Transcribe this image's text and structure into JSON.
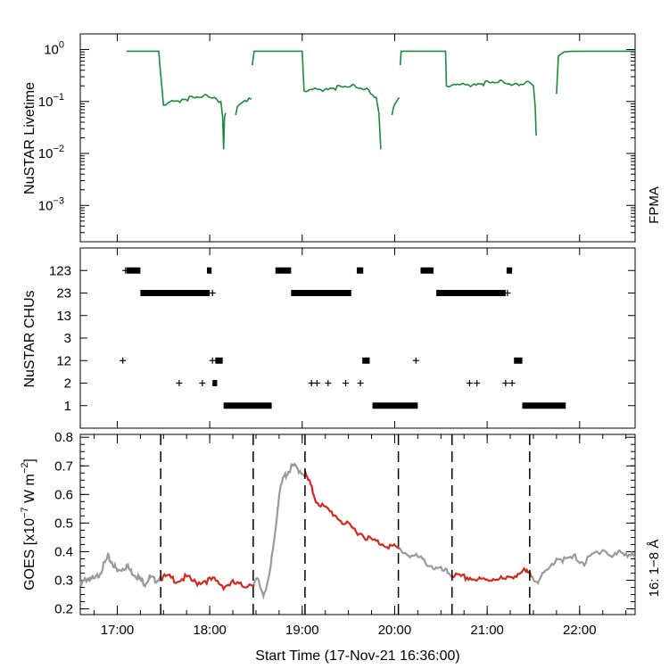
{
  "figure": {
    "xlabel": "Start Time (17-Nov-21 16:36:00)"
  },
  "colors": {
    "livetime": "#1b8a3a",
    "goes_gray": "#9a9a9a",
    "goes_red": "#d42a1e",
    "axis": "#000000"
  },
  "chart_data": [
    {
      "type": "line",
      "panel": "livetime",
      "ylabel": "NuSTAR Livetime",
      "yscale": "log",
      "ylim": [
        0.0002,
        2
      ],
      "xlim": [
        16.6,
        22.6
      ],
      "ytick_base": [
        "10",
        "10",
        "10",
        "10"
      ],
      "ytick_exp": [
        "0",
        "−1",
        "−2",
        "−3"
      ],
      "ytick_values": [
        1,
        0.1,
        0.01,
        0.001
      ],
      "legend": "FPMA",
      "segments": [
        {
          "x": [
            17.1,
            17.45,
            17.46,
            17.5,
            17.55,
            17.7,
            17.9,
            18.05,
            18.12,
            18.14,
            18.15,
            18.16,
            18.17
          ],
          "y": [
            0.93,
            0.93,
            0.5,
            0.085,
            0.095,
            0.11,
            0.12,
            0.12,
            0.1,
            0.05,
            0.012,
            0.05,
            0.06
          ]
        },
        {
          "x": [
            18.28,
            18.3,
            18.4,
            18.45
          ],
          "y": [
            0.055,
            0.08,
            0.1,
            0.11
          ]
        },
        {
          "x": [
            18.46,
            18.48,
            19.0,
            19.02,
            19.1,
            19.3,
            19.5,
            19.7,
            19.8,
            19.83,
            19.85
          ],
          "y": [
            0.5,
            0.93,
            0.93,
            0.16,
            0.17,
            0.18,
            0.19,
            0.18,
            0.12,
            0.06,
            0.012
          ]
        },
        {
          "x": [
            19.97,
            19.99,
            20.02,
            20.05
          ],
          "y": [
            0.055,
            0.08,
            0.1,
            0.12
          ]
        },
        {
          "x": [
            20.06,
            20.07,
            20.55,
            20.56,
            20.7,
            20.9,
            21.1,
            21.3,
            21.45,
            21.5,
            21.52,
            21.53
          ],
          "y": [
            0.5,
            0.93,
            0.93,
            0.2,
            0.21,
            0.22,
            0.23,
            0.22,
            0.24,
            0.2,
            0.08,
            0.022
          ]
        },
        {
          "x": [
            21.75,
            21.77,
            21.83,
            21.9,
            22.1,
            22.6
          ],
          "y": [
            0.14,
            0.75,
            0.9,
            0.92,
            0.93,
            0.93
          ]
        }
      ]
    },
    {
      "type": "scatter",
      "panel": "chu",
      "ylabel": "NuSTAR CHUs",
      "xlim": [
        16.6,
        22.6
      ],
      "categories": [
        "1",
        "2",
        "12",
        "3",
        "13",
        "23",
        "123"
      ],
      "bands": [
        {
          "category": "123",
          "ranges": [
            [
              17.1,
              17.25
            ],
            [
              17.97,
              18.02
            ],
            [
              18.71,
              18.88
            ],
            [
              19.59,
              19.66
            ],
            [
              20.28,
              20.42
            ],
            [
              21.21,
              21.27
            ]
          ]
        },
        {
          "category": "23",
          "ranges": [
            [
              17.25,
              18.0
            ],
            [
              18.88,
              19.53
            ],
            [
              20.45,
              21.2
            ]
          ]
        },
        {
          "category": "12",
          "ranges": [
            [
              18.06,
              18.14
            ],
            [
              19.65,
              19.73
            ],
            [
              21.29,
              21.38
            ]
          ]
        },
        {
          "category": "2",
          "ranges": [
            [
              18.03,
              18.08
            ]
          ]
        },
        {
          "category": "1",
          "ranges": [
            [
              18.15,
              18.67
            ],
            [
              19.76,
              20.25
            ],
            [
              21.38,
              21.85
            ]
          ]
        }
      ],
      "points": [
        {
          "category": "123",
          "x": [
            17.09
          ]
        },
        {
          "category": "23",
          "x": [
            18.03,
            21.22
          ]
        },
        {
          "category": "12",
          "x": [
            17.06,
            18.03,
            20.23
          ]
        },
        {
          "category": "2",
          "x": [
            17.67,
            17.92,
            19.1,
            19.16,
            19.28,
            19.47,
            19.63,
            20.81,
            20.89,
            21.2,
            21.27
          ]
        }
      ]
    },
    {
      "type": "line",
      "panel": "goes",
      "ylabel": "GOES [x10−7 W m−2]",
      "ylim": [
        0.18,
        0.81
      ],
      "xlim": [
        16.6,
        22.6
      ],
      "yticks": [
        "0.2",
        "0.3",
        "0.4",
        "0.5",
        "0.6",
        "0.7",
        "0.8"
      ],
      "xticks": [
        "17:00",
        "18:00",
        "19:00",
        "20:00",
        "21:00",
        "22:00"
      ],
      "xtick_values": [
        17,
        18,
        19,
        20,
        21,
        22
      ],
      "legend": "16: 1−8 Å",
      "vlines": [
        17.47,
        18.47,
        19.03,
        20.04,
        20.62,
        21.46
      ],
      "series": [
        {
          "name": "GOES 1-8 Å",
          "x": [
            16.6,
            16.65,
            16.7,
            16.75,
            16.8,
            16.85,
            16.9,
            16.95,
            17.0,
            17.05,
            17.1,
            17.15,
            17.2,
            17.25,
            17.3,
            17.35,
            17.4,
            17.47,
            17.55,
            17.65,
            17.75,
            17.85,
            17.95,
            18.05,
            18.15,
            18.25,
            18.35,
            18.47,
            18.52,
            18.58,
            18.65,
            18.7,
            18.75,
            18.8,
            18.85,
            18.9,
            18.95,
            19.03,
            19.08,
            19.15,
            19.25,
            19.35,
            19.45,
            19.55,
            19.65,
            19.75,
            19.85,
            19.95,
            20.04,
            20.15,
            20.25,
            20.35,
            20.45,
            20.55,
            20.62,
            20.7,
            20.8,
            20.9,
            21.0,
            21.1,
            21.2,
            21.3,
            21.4,
            21.46,
            21.55,
            21.65,
            21.75,
            21.85,
            21.95,
            22.05,
            22.15,
            22.25,
            22.35,
            22.45,
            22.55,
            22.6
          ],
          "y": [
            0.28,
            0.3,
            0.31,
            0.3,
            0.32,
            0.35,
            0.38,
            0.36,
            0.33,
            0.34,
            0.35,
            0.33,
            0.32,
            0.3,
            0.29,
            0.31,
            0.3,
            0.31,
            0.31,
            0.3,
            0.31,
            0.29,
            0.3,
            0.3,
            0.28,
            0.29,
            0.28,
            0.29,
            0.3,
            0.25,
            0.32,
            0.45,
            0.6,
            0.66,
            0.68,
            0.7,
            0.69,
            0.67,
            0.64,
            0.58,
            0.55,
            0.53,
            0.5,
            0.48,
            0.46,
            0.44,
            0.43,
            0.42,
            0.41,
            0.39,
            0.38,
            0.36,
            0.34,
            0.33,
            0.32,
            0.31,
            0.31,
            0.3,
            0.3,
            0.31,
            0.3,
            0.32,
            0.33,
            0.32,
            0.3,
            0.33,
            0.38,
            0.37,
            0.38,
            0.36,
            0.39,
            0.41,
            0.38,
            0.4,
            0.39,
            0.38
          ],
          "highlight": [
            [
              17.47,
              18.47
            ],
            [
              19.03,
              20.04
            ],
            [
              20.62,
              21.46
            ]
          ]
        }
      ]
    }
  ]
}
